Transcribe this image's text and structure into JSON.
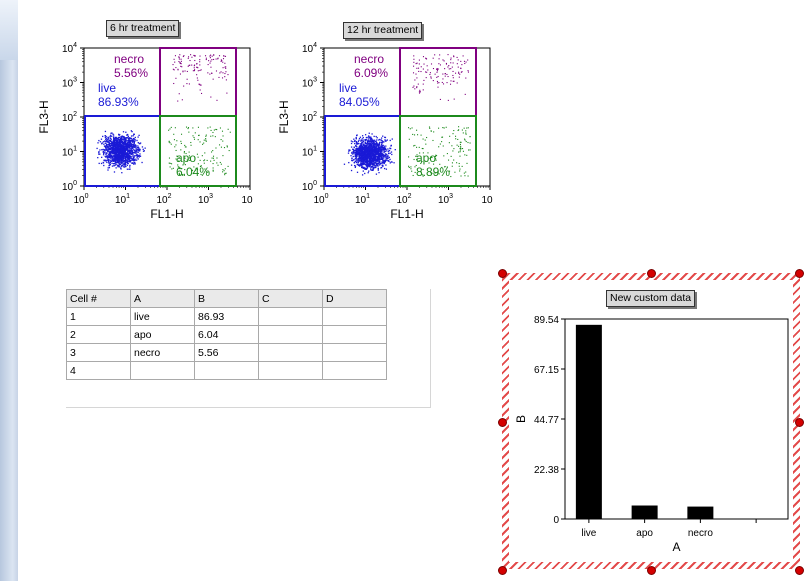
{
  "plots": [
    {
      "title": "6 hr treatment",
      "xlabel": "FL1-H",
      "ylabel": "FL3-H",
      "y_ticks": [
        {
          "base": "10",
          "exp": "4"
        },
        {
          "base": "10",
          "exp": "3"
        },
        {
          "base": "10",
          "exp": "2"
        },
        {
          "base": "10",
          "exp": "1"
        },
        {
          "base": "10",
          "exp": "0"
        }
      ],
      "x_ticks": [
        {
          "base": "10",
          "exp": "0"
        },
        {
          "base": "10",
          "exp": "1"
        },
        {
          "base": "10",
          "exp": "2"
        },
        {
          "base": "10",
          "exp": "3"
        },
        {
          "base": "10",
          "exp": ""
        }
      ],
      "gates": {
        "necro": {
          "name": "necro",
          "pct": "5.56%",
          "color": "#800080"
        },
        "live": {
          "name": "live",
          "pct": "86.93%",
          "color": "#1a1ad6"
        },
        "apo": {
          "name": "apo",
          "pct": "6.04%",
          "color": "#1c8a1c"
        }
      }
    },
    {
      "title": "12 hr treatment",
      "xlabel": "FL1-H",
      "ylabel": "FL3-H",
      "y_ticks": [
        {
          "base": "10",
          "exp": "4"
        },
        {
          "base": "10",
          "exp": "3"
        },
        {
          "base": "10",
          "exp": "2"
        },
        {
          "base": "10",
          "exp": "1"
        },
        {
          "base": "10",
          "exp": "0"
        }
      ],
      "x_ticks": [
        {
          "base": "10",
          "exp": "0"
        },
        {
          "base": "10",
          "exp": "1"
        },
        {
          "base": "10",
          "exp": "2"
        },
        {
          "base": "10",
          "exp": "3"
        },
        {
          "base": "10",
          "exp": ""
        }
      ],
      "gates": {
        "necro": {
          "name": "necro",
          "pct": "6.09%",
          "color": "#800080"
        },
        "live": {
          "name": "live",
          "pct": "84.05%",
          "color": "#1a1ad6"
        },
        "apo": {
          "name": "apo",
          "pct": "8.89%",
          "color": "#1c8a1c"
        }
      }
    }
  ],
  "sheet": {
    "headers": [
      "Cell #",
      "A",
      "B",
      "C",
      "D"
    ],
    "rows": [
      [
        "1",
        "live",
        "86.93",
        "",
        ""
      ],
      [
        "2",
        "apo",
        "6.04",
        "",
        ""
      ],
      [
        "3",
        "necro",
        "5.56",
        "",
        ""
      ],
      [
        "4",
        "",
        "",
        "",
        ""
      ]
    ]
  },
  "custom_chart_tag": "New custom data",
  "chart_data": {
    "type": "bar",
    "title": "",
    "categories": [
      "live",
      "apo",
      "necro",
      ""
    ],
    "values": [
      86.93,
      6.04,
      5.56,
      null
    ],
    "xlabel": "A",
    "ylabel": "B",
    "ylim": [
      0,
      89.54
    ],
    "y_ticks": [
      "89.54",
      "67.15",
      "44.77",
      "22.38",
      "0"
    ],
    "bar_color": "#000000"
  }
}
